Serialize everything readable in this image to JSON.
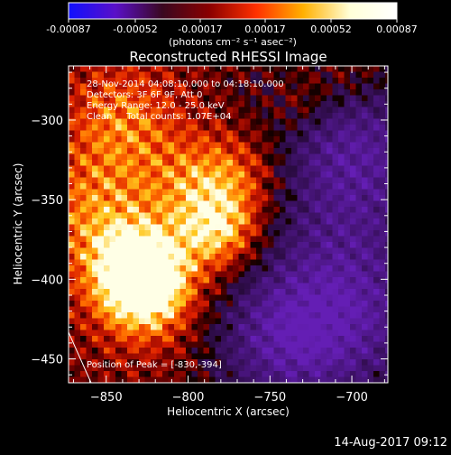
{
  "colorbar": {
    "tick_labels": [
      "-0.00087",
      "-0.00052",
      "-0.00017",
      "0.00017",
      "0.00052",
      "0.00087"
    ],
    "units": "(photons cm⁻² s⁻¹ asec⁻²)",
    "range": [
      -0.00087,
      0.00087
    ],
    "colors": [
      "#1010ff",
      "#5a10c8",
      "#3a0820",
      "#8a0000",
      "#ff3000",
      "#ffb000",
      "#ffffd8",
      "#ffffff"
    ]
  },
  "chart_data": {
    "type": "heatmap",
    "title": "Reconstructed RHESSI Image",
    "xlabel": "Heliocentric X (arcsec)",
    "ylabel": "Heliocentric Y (arcsec)",
    "xlim": [
      -873,
      -678
    ],
    "ylim": [
      -465,
      -266
    ],
    "xticks": [
      -850,
      -800,
      -750,
      -700
    ],
    "yticks": [
      -300,
      -350,
      -400,
      -450
    ],
    "bright_regions": [
      {
        "x": -830,
        "y": -394,
        "strength": 1.0,
        "spread": 18
      },
      {
        "x": -825,
        "y": -410,
        "strength": 0.8,
        "spread": 22
      },
      {
        "x": -780,
        "y": -370,
        "strength": 0.75,
        "spread": 18
      },
      {
        "x": -790,
        "y": -340,
        "strength": 0.55,
        "spread": 22
      },
      {
        "x": -855,
        "y": -360,
        "strength": 0.55,
        "spread": 28
      },
      {
        "x": -840,
        "y": -300,
        "strength": 0.5,
        "spread": 25
      },
      {
        "x": -760,
        "y": -330,
        "strength": 0.35,
        "spread": 20
      },
      {
        "x": -730,
        "y": -290,
        "strength": 0.35,
        "spread": 14
      },
      {
        "x": -700,
        "y": -270,
        "strength": 0.3,
        "spread": 18
      }
    ],
    "dark_regions": [
      {
        "x": -700,
        "y": -320,
        "strength": 0.9,
        "spread": 40
      },
      {
        "x": -705,
        "y": -420,
        "strength": 0.9,
        "spread": 40
      },
      {
        "x": -745,
        "y": -440,
        "strength": 0.6,
        "spread": 30
      }
    ],
    "annotations": [
      "28-Nov-2014 04:08:10.000 to 04:18:10.000",
      "Detectors: 3F 6F 9F, Att 0",
      "Energy Range: 12.0 - 25.0 keV",
      "Clean     Total counts: 1.07E+04",
      "Position of Peak = [-830,-394]"
    ],
    "peak": {
      "x": -830,
      "y": -394
    },
    "timestamp": "14-Aug-2017 09:12"
  }
}
